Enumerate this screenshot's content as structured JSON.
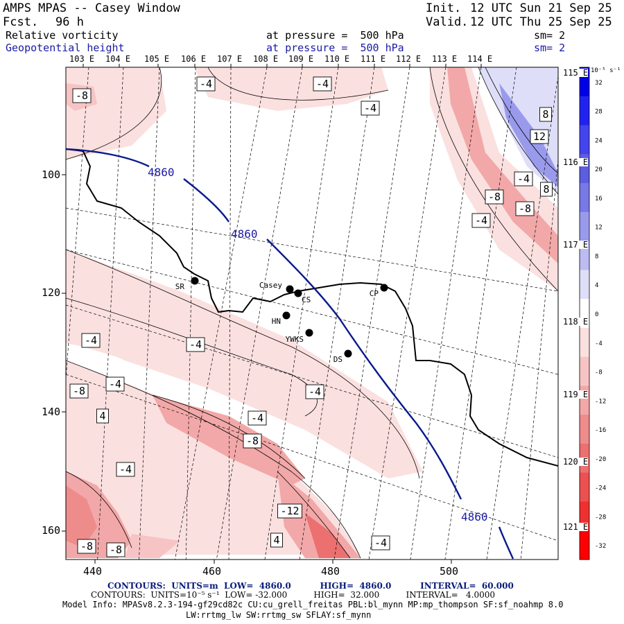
{
  "header": {
    "title": "AMPS MPAS -- Casey Window",
    "forecast_label": "Fcst.",
    "forecast_hours": "96 h",
    "init_label": "Init.",
    "init_time": "12 UTC Sun 21 Sep 25",
    "valid_label": "Valid.",
    "valid_time": "12 UTC Thu 25 Sep 25",
    "fields": [
      {
        "name": "Relative vorticity",
        "level": "at pressure =  500 hPa",
        "smooth": "sm= 2"
      },
      {
        "name": "Geopotential height",
        "level": "at pressure =  500 hPa",
        "smooth": "sm= 2"
      }
    ]
  },
  "top_lon_labels": [
    "103 E",
    "104 E",
    "105 E",
    "106 E",
    "107 E",
    "108 E",
    "109 E",
    "110 E",
    "111 E",
    "112 E",
    "113 E",
    "114 E"
  ],
  "right_lon_labels": [
    "115 E",
    "116 E",
    "117 E",
    "118 E",
    "119 E",
    "120 E",
    "121 E"
  ],
  "x_axis_ticks": [
    "440",
    "460",
    "480",
    "500"
  ],
  "y_axis_ticks": [
    "100",
    "120",
    "140",
    "160"
  ],
  "stations": [
    {
      "code": "SR"
    },
    {
      "code": "Casey"
    },
    {
      "code": "CS"
    },
    {
      "code": "CP"
    },
    {
      "code": "HN"
    },
    {
      "code": "YWKS"
    },
    {
      "code": "DS"
    }
  ],
  "height_contour_labels": [
    "4860",
    "4860",
    "4860"
  ],
  "vorticity_labels": [
    "-8",
    "-4",
    "-4",
    "-4",
    "8",
    "12",
    "-4",
    "8",
    "-8",
    "-8",
    "-4",
    "-4",
    "-4",
    "-8",
    "-4",
    "4",
    "-4",
    "-4",
    "-8",
    "-4",
    "-12",
    "4",
    "-4",
    "-8",
    "-8"
  ],
  "colorbar": {
    "unit_label": "10⁻⁵ s⁻¹",
    "ticks": [
      "32",
      "28",
      "24",
      "20",
      "16",
      "12",
      "8",
      "4",
      "0",
      "-4",
      "-8",
      "-12",
      "-16",
      "-20",
      "-24",
      "-28",
      "-32"
    ],
    "colors": [
      "#0000e6",
      "#2222ee",
      "#4444ee",
      "#5d5de0",
      "#7878e6",
      "#9a9aec",
      "#bcbcf2",
      "#dedef8",
      "#ffffff",
      "#fbe0e0",
      "#f6c4c4",
      "#f2a8a8",
      "#ee8c8c",
      "#ec7070",
      "#ec5050",
      "#f03030",
      "#ff0000"
    ]
  },
  "footer": {
    "height_contours": "CONTOURS:  UNITS=m  LOW=  4860.0          HIGH=  4860.0          INTERVAL=  60.000",
    "vort_contours": "CONTOURS:  UNITS=10⁻⁵ s⁻¹  LOW= -32.000          HIGH=  32.000          INTERVAL=   4.0000",
    "model_info": "Model Info: MPASv8.2.3-194-gf29cd82c CU:cu_grell_freitas PBL:bl_mynn MP:mp_thompson SF:sf_noahmp 8.0",
    "model_info2": "LW:rrtmg_lw SW:rrtmg_sw SFLAY:sf_mynn"
  },
  "colors": {
    "height_contour": "#0a1a8c",
    "text_blue": "#1a1aa6"
  }
}
